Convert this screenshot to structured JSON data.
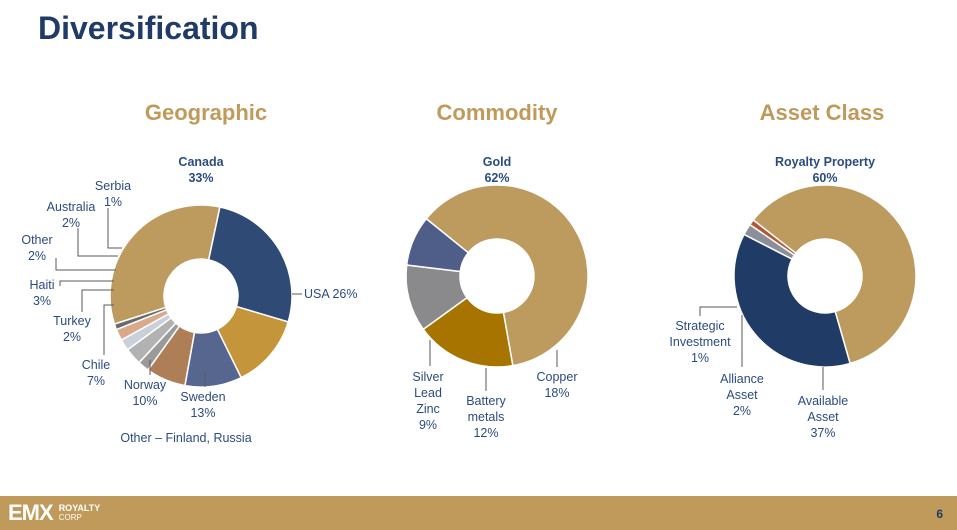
{
  "slide": {
    "title": "Diversification",
    "page_number": "6"
  },
  "logo": {
    "mark": "EMX",
    "line1": "ROYALTY",
    "line2": "CORP"
  },
  "colors": {
    "title": "#1f3b66",
    "heading": "#c09a5b",
    "label": "#2b4c7e",
    "footer": "#c09a5b"
  },
  "chart_data": [
    {
      "type": "pie",
      "subtype": "donut",
      "title": "Geographic",
      "note": "Other – Finland, Russia",
      "slices": [
        {
          "name": "Canada",
          "value": 33,
          "color": "#bd9a5e",
          "label_lines": [
            "Canada",
            "33%"
          ]
        },
        {
          "name": "USA",
          "value": 26,
          "color": "#2e4a75",
          "label_lines": [
            "USA 26%"
          ]
        },
        {
          "name": "Sweden",
          "value": 13,
          "color": "#c4953a",
          "label_lines": [
            "Sweden",
            "13%"
          ]
        },
        {
          "name": "Norway",
          "value": 10,
          "color": "#56668f",
          "label_lines": [
            "Norway",
            "10%"
          ]
        },
        {
          "name": "Chile",
          "value": 7,
          "color": "#ae7f57",
          "label_lines": [
            "Chile",
            "7%"
          ]
        },
        {
          "name": "Turkey",
          "value": 2,
          "color": "#9a9a9a",
          "label_lines": [
            "Turkey",
            "2%"
          ]
        },
        {
          "name": "Haiti",
          "value": 3,
          "color": "#b2b2b2",
          "label_lines": [
            "Haiti",
            "3%"
          ]
        },
        {
          "name": "Other",
          "value": 2,
          "color": "#c9d0dc",
          "label_lines": [
            "Other",
            "2%"
          ]
        },
        {
          "name": "Australia",
          "value": 2,
          "color": "#d8a98a",
          "label_lines": [
            "Australia",
            "2%"
          ]
        },
        {
          "name": "Serbia",
          "value": 1,
          "color": "#6a6a6a",
          "label_lines": [
            "Serbia",
            "1%"
          ]
        }
      ]
    },
    {
      "type": "pie",
      "subtype": "donut",
      "title": "Commodity",
      "slices": [
        {
          "name": "Gold",
          "value": 62,
          "color": "#bd9a5e",
          "label_lines": [
            "Gold",
            "62%"
          ]
        },
        {
          "name": "Copper",
          "value": 18,
          "color": "#a87400",
          "label_lines": [
            "Copper",
            "18%"
          ]
        },
        {
          "name": "Battery metals",
          "value": 12,
          "color": "#8a8a8d",
          "label_lines": [
            "Battery",
            "metals",
            "12%"
          ]
        },
        {
          "name": "Silver Lead Zinc",
          "value": 9,
          "color": "#4f5e88",
          "label_lines": [
            "Silver",
            "Lead",
            "Zinc",
            "9%"
          ]
        }
      ]
    },
    {
      "type": "pie",
      "subtype": "donut",
      "title": "Asset Class",
      "slices": [
        {
          "name": "Royalty Property",
          "value": 60,
          "color": "#bd9a5e",
          "label_lines": [
            "Royalty Property",
            "60%"
          ]
        },
        {
          "name": "Available Asset",
          "value": 37,
          "color": "#1f3b66",
          "label_lines": [
            "Available",
            "Asset",
            "37%"
          ]
        },
        {
          "name": "Alliance Asset",
          "value": 2,
          "color": "#8a8f98",
          "label_lines": [
            "Alliance",
            "Asset",
            "2%"
          ]
        },
        {
          "name": "Strategic Investment",
          "value": 1,
          "color": "#b2563a",
          "label_lines": [
            "Strategic",
            "Investment",
            "1%"
          ]
        }
      ]
    }
  ]
}
